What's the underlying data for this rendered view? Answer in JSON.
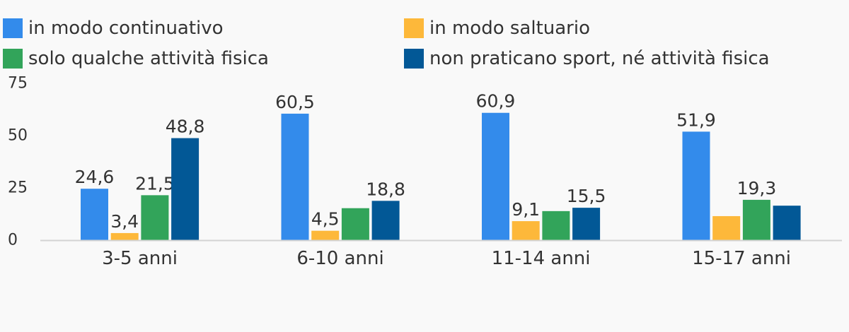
{
  "chart_data": {
    "type": "bar",
    "categories": [
      "3-5 anni",
      "6-10 anni",
      "11-14 anni",
      "15-17 anni"
    ],
    "series": [
      {
        "name": "in modo continuativo",
        "color": "#338beb",
        "values": [
          24.6,
          60.5,
          60.9,
          51.9
        ],
        "labels": [
          "24,6",
          "60,5",
          "60,9",
          "51,9"
        ]
      },
      {
        "name": "in modo saltuario",
        "color": "#fdb83a",
        "values": [
          3.4,
          4.5,
          9.1,
          11.5
        ],
        "labels": [
          "3,4",
          "4,5",
          "9,1",
          ""
        ]
      },
      {
        "name": "solo qualche attività fisica",
        "color": "#32a45a",
        "values": [
          21.5,
          15.3,
          13.9,
          19.3
        ],
        "labels": [
          "21,5",
          "",
          "",
          "19,3"
        ]
      },
      {
        "name": "non praticano sport, né attività fisica",
        "color": "#025896",
        "values": [
          48.8,
          18.8,
          15.5,
          16.5
        ],
        "labels": [
          "48,8",
          "18,8",
          "15,5",
          ""
        ]
      }
    ],
    "yticks": [
      "0",
      "25",
      "50",
      "75"
    ],
    "ylim": [
      0,
      75
    ],
    "legend_position": "top"
  }
}
